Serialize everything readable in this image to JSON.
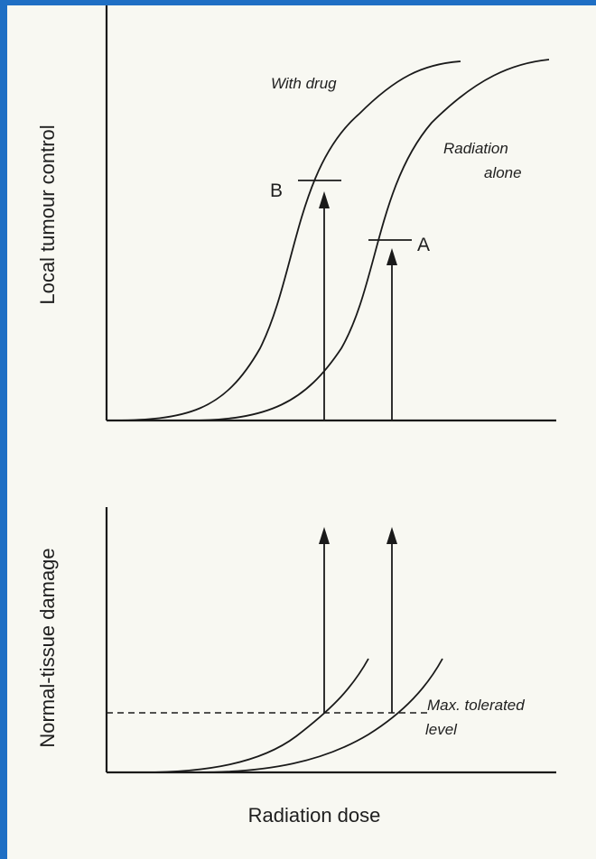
{
  "top_panel": {
    "y_axis_label": "Local tumour control",
    "curve_with_drug_label": "With drug",
    "curve_radiation_label_line1": "Radiation",
    "curve_radiation_label_line2": "alone",
    "point_b_label": "B",
    "point_a_label": "A"
  },
  "bottom_panel": {
    "y_axis_label": "Normal-tissue damage",
    "threshold_label_line1": "Max. tolerated",
    "threshold_label_line2": "level"
  },
  "x_axis_label": "Radiation dose",
  "colors": {
    "background": "#1f6fc4",
    "page": "#f8f8f2",
    "ink": "#1a1a1a"
  }
}
